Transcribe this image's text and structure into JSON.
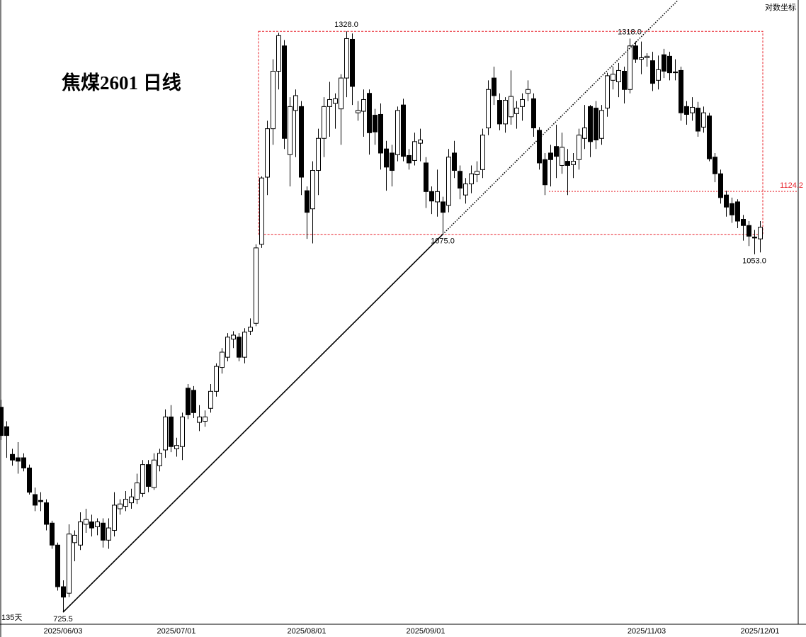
{
  "chart_data": {
    "type": "candlestick",
    "title": "焦煤2601  日线",
    "scale_label": "对数坐标",
    "day_count": "135天",
    "log_scale": true,
    "ylim": [
      717,
      1372
    ],
    "up_color": "#ffffff",
    "down_color": "#000000",
    "level_color": "#e8212a",
    "categories": [
      null,
      null,
      null,
      null,
      null,
      null,
      null,
      null,
      null,
      null,
      null,
      "2025/06/03",
      null,
      null,
      null,
      null,
      null,
      null,
      null,
      null,
      null,
      null,
      null,
      null,
      null,
      null,
      null,
      null,
      null,
      null,
      null,
      "2025/07/01",
      null,
      null,
      null,
      null,
      null,
      null,
      null,
      null,
      null,
      null,
      null,
      null,
      null,
      null,
      null,
      null,
      null,
      null,
      null,
      null,
      null,
      null,
      "2025/08/01",
      null,
      null,
      null,
      null,
      null,
      null,
      null,
      null,
      null,
      null,
      null,
      null,
      null,
      null,
      null,
      null,
      null,
      null,
      null,
      null,
      "2025/09/01",
      null,
      null,
      null,
      null,
      null,
      null,
      null,
      null,
      null,
      null,
      null,
      null,
      null,
      null,
      null,
      null,
      null,
      null,
      null,
      null,
      null,
      null,
      null,
      null,
      null,
      null,
      null,
      null,
      null,
      null,
      null,
      null,
      null,
      null,
      null,
      null,
      null,
      null,
      "2025/11/03",
      null,
      null,
      null,
      null,
      null,
      null,
      null,
      null,
      null,
      null,
      null,
      null,
      null,
      null,
      null,
      null,
      null,
      null,
      null,
      "2025/12/01"
    ],
    "open": [
      898,
      880,
      855,
      852,
      852,
      843,
      820,
      815,
      813,
      796,
      778,
      745,
      740,
      780,
      778,
      795,
      797,
      793,
      796,
      782,
      790,
      808,
      810,
      813,
      816,
      821,
      846,
      826,
      845,
      859,
      889,
      860,
      862,
      916,
      914,
      884,
      885,
      897,
      913,
      936,
      946,
      964,
      966,
      946,
      972,
      980,
      1064,
      1141,
      1200,
      1274,
      1308,
      1168,
      1223,
      1228,
      1125,
      1104,
      1149,
      1188,
      1228,
      1232,
      1225,
      1265,
      1317,
      1220,
      1222,
      1245,
      1217,
      1218,
      1175,
      1170,
      1168,
      1230,
      1167,
      1161,
      1182,
      1158,
      1124,
      1112,
      1112,
      1108,
      1170,
      1148,
      1120,
      1133,
      1144,
      1150,
      1201,
      1265,
      1236,
      1206,
      1215,
      1219,
      1228,
      1245,
      1238,
      1198,
      1162,
      1170,
      1178,
      1155,
      1160,
      1156,
      1162,
      1188,
      1228,
      1226,
      1188,
      1226,
      1262,
      1260,
      1274,
      1250,
      1308,
      1290,
      1292,
      1288,
      1262,
      1296,
      1294,
      1273,
      1275,
      1228,
      1220,
      1226,
      1202,
      1216,
      1165,
      1145,
      1120,
      1110,
      1112,
      1092,
      1085,
      1072,
      1070
    ],
    "high": [
      905,
      885,
      860,
      866,
      856,
      846,
      826,
      822,
      816,
      798,
      780,
      750,
      795,
      790,
      805,
      808,
      803,
      800,
      800,
      800,
      822,
      816,
      823,
      825,
      838,
      850,
      850,
      856,
      860,
      896,
      900,
      870,
      893,
      920,
      918,
      900,
      895,
      920,
      940,
      955,
      970,
      972,
      970,
      975,
      985,
      1064,
      1142,
      1210,
      1290,
      1326,
      1316,
      1240,
      1250,
      1235,
      1130,
      1160,
      1200,
      1240,
      1260,
      1245,
      1270,
      1328,
      1325,
      1235,
      1250,
      1250,
      1225,
      1232,
      1185,
      1180,
      1228,
      1238,
      1175,
      1195,
      1200,
      1165,
      1130,
      1150,
      1118,
      1175,
      1185,
      1155,
      1140,
      1155,
      1160,
      1200,
      1262,
      1280,
      1245,
      1240,
      1275,
      1235,
      1245,
      1262,
      1245,
      1202,
      1170,
      1180,
      1205,
      1195,
      1175,
      1170,
      1200,
      1230,
      1230,
      1235,
      1230,
      1272,
      1280,
      1285,
      1280,
      1318,
      1314,
      1314,
      1298,
      1300,
      1295,
      1304,
      1300,
      1290,
      1280,
      1235,
      1240,
      1234,
      1228,
      1220,
      1170,
      1150,
      1125,
      1117,
      1115,
      1097,
      1090,
      1080,
      1090
    ],
    "low": [
      868,
      852,
      845,
      838,
      840,
      820,
      806,
      806,
      790,
      775,
      742,
      725.5,
      737,
      765,
      774,
      788,
      785,
      786,
      776,
      775,
      785,
      803,
      806,
      808,
      812,
      818,
      822,
      824,
      840,
      852,
      857,
      853,
      850,
      887,
      888,
      876,
      880,
      893,
      908,
      930,
      942,
      955,
      942,
      940,
      968,
      977,
      1060,
      1120,
      1180,
      1250,
      1175,
      1130,
      1165,
      1120,
      1070,
      1065,
      1120,
      1165,
      1190,
      1200,
      1180,
      1240,
      1230,
      1210,
      1190,
      1168,
      1180,
      1150,
      1125,
      1130,
      1160,
      1160,
      1150,
      1155,
      1160,
      1105,
      1098,
      1095,
      1075,
      1100,
      1140,
      1115,
      1110,
      1122,
      1135,
      1140,
      1192,
      1230,
      1198,
      1195,
      1205,
      1200,
      1210,
      1235,
      1190,
      1150,
      1120,
      1130,
      1140,
      1145,
      1120,
      1140,
      1150,
      1175,
      1165,
      1175,
      1180,
      1215,
      1250,
      1240,
      1232,
      1245,
      1285,
      1270,
      1280,
      1248,
      1250,
      1265,
      1262,
      1262,
      1210,
      1205,
      1210,
      1190,
      1195,
      1160,
      1135,
      1110,
      1095,
      1088,
      1082,
      1068,
      1062,
      1053,
      1055
    ],
    "close": [
      872,
      872,
      850,
      849,
      843,
      822,
      811,
      814,
      795,
      778,
      745,
      737,
      787,
      786,
      797,
      799,
      792,
      797,
      782,
      792,
      811,
      812,
      816,
      818,
      830,
      846,
      827,
      850,
      856,
      889,
      862,
      863,
      889,
      891,
      893,
      889,
      889,
      913,
      937,
      951,
      966,
      968,
      946,
      971,
      976,
      1060,
      1140,
      1200,
      1274,
      1322,
      1188,
      1228,
      1242,
      1141,
      1100,
      1149,
      1188,
      1228,
      1237,
      1238,
      1265,
      1318,
      1254,
      1223,
      1237,
      1195,
      1196,
      1170,
      1153,
      1149,
      1223,
      1166,
      1158,
      1184,
      1186,
      1124,
      1113,
      1124,
      1100,
      1165,
      1149,
      1128,
      1133,
      1145,
      1148,
      1192,
      1250,
      1242,
      1206,
      1236,
      1241,
      1226,
      1237,
      1250,
      1201,
      1158,
      1132,
      1162,
      1166,
      1177,
      1155,
      1160,
      1192,
      1201,
      1184,
      1186,
      1223,
      1268,
      1270,
      1275,
      1250,
      1308,
      1290,
      1292,
      1294,
      1258,
      1276,
      1274,
      1272,
      1272,
      1220,
      1218,
      1227,
      1197,
      1220,
      1163,
      1145,
      1117,
      1106,
      1097,
      1090,
      1085,
      1073,
      1071,
      1083
    ],
    "annotations": [
      {
        "value": 1328,
        "label": "1328.0",
        "at": "high"
      },
      {
        "value": 1318,
        "label": "1318.0",
        "at": "high"
      },
      {
        "value": 1075,
        "label": "1075.0",
        "at": "low"
      },
      {
        "value": 1053,
        "label": "1053.0",
        "at": "low"
      },
      {
        "value": 725.5,
        "label": "725.5",
        "at": "low"
      }
    ],
    "level": 1124.2
  }
}
